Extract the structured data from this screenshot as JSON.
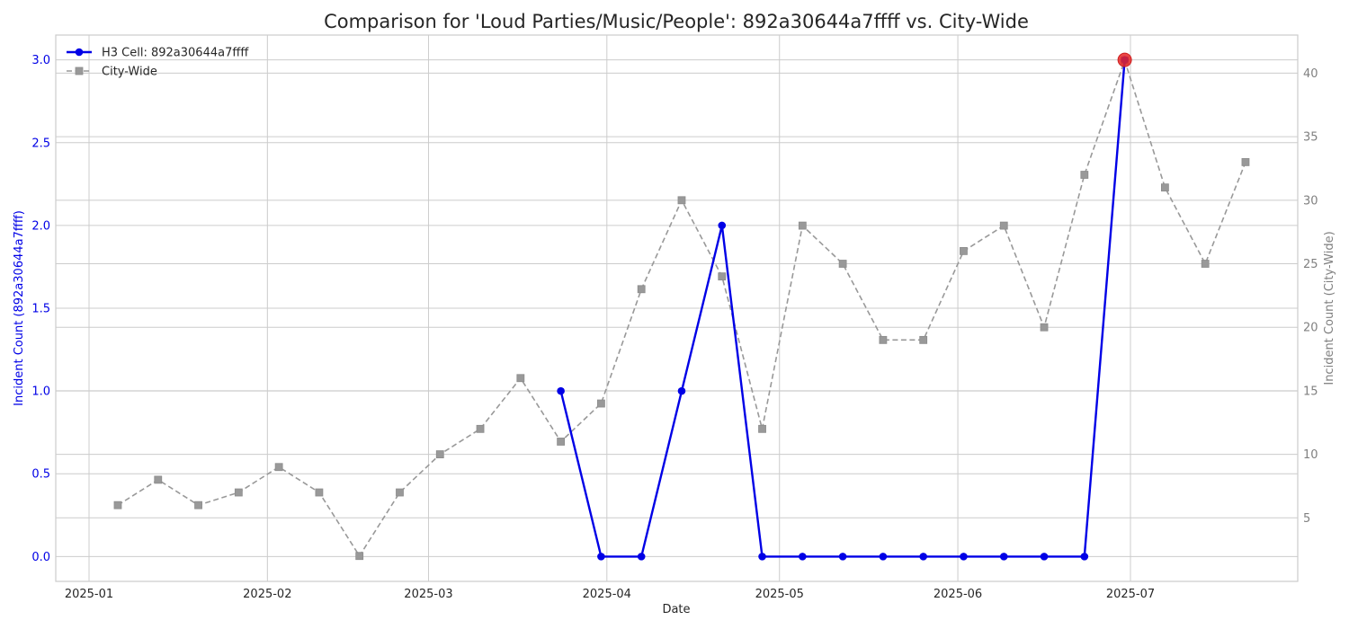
{
  "chart_data": {
    "type": "line",
    "title": "Comparison for 'Loud Parties/Music/People': 892a30644a7ffff vs. City-Wide",
    "xlabel": "Date",
    "ylabel_left": "Incident Count (892a30644a7ffff)",
    "ylabel_right": "Incident Count (City-Wide)",
    "x_ticks": [
      "2025-01",
      "2025-02",
      "2025-03",
      "2025-04",
      "2025-05",
      "2025-06",
      "2025-07"
    ],
    "ylim_left": [
      -0.15,
      3.15
    ],
    "ylim_right": [
      0,
      43
    ],
    "y_ticks_left": [
      "0.0",
      "0.5",
      "1.0",
      "1.5",
      "2.0",
      "2.5",
      "3.0"
    ],
    "y_ticks_right": [
      "5",
      "10",
      "15",
      "20",
      "25",
      "30",
      "35",
      "40"
    ],
    "grid": true,
    "legend_position": "top-left",
    "series": [
      {
        "name": "H3 Cell: 892a30644a7ffff",
        "axis": "left",
        "color": "#0000e6",
        "style": "solid",
        "marker": "circle",
        "points": [
          [
            "2025-03-24",
            1
          ],
          [
            "2025-03-31",
            0
          ],
          [
            "2025-04-07",
            0
          ],
          [
            "2025-04-14",
            1
          ],
          [
            "2025-04-21",
            2
          ],
          [
            "2025-04-28",
            0
          ],
          [
            "2025-05-05",
            0
          ],
          [
            "2025-05-12",
            0
          ],
          [
            "2025-05-19",
            0
          ],
          [
            "2025-05-26",
            0
          ],
          [
            "2025-06-02",
            0
          ],
          [
            "2025-06-09",
            0
          ],
          [
            "2025-06-16",
            0
          ],
          [
            "2025-06-23",
            0
          ],
          [
            "2025-06-30",
            3
          ]
        ]
      },
      {
        "name": "City-Wide",
        "axis": "right",
        "color": "#999999",
        "style": "dashed",
        "marker": "square",
        "points": [
          [
            "2025-01-06",
            6
          ],
          [
            "2025-01-13",
            8
          ],
          [
            "2025-01-20",
            6
          ],
          [
            "2025-01-27",
            7
          ],
          [
            "2025-02-03",
            9
          ],
          [
            "2025-02-10",
            7
          ],
          [
            "2025-02-17",
            2
          ],
          [
            "2025-02-24",
            7
          ],
          [
            "2025-03-03",
            10
          ],
          [
            "2025-03-10",
            12
          ],
          [
            "2025-03-17",
            16
          ],
          [
            "2025-03-24",
            11
          ],
          [
            "2025-03-31",
            14
          ],
          [
            "2025-04-07",
            23
          ],
          [
            "2025-04-14",
            30
          ],
          [
            "2025-04-21",
            24
          ],
          [
            "2025-04-28",
            12
          ],
          [
            "2025-05-05",
            28
          ],
          [
            "2025-05-12",
            25
          ],
          [
            "2025-05-19",
            19
          ],
          [
            "2025-05-26",
            19
          ],
          [
            "2025-06-02",
            26
          ],
          [
            "2025-06-09",
            28
          ],
          [
            "2025-06-16",
            20
          ],
          [
            "2025-06-23",
            32
          ],
          [
            "2025-06-30",
            41
          ],
          [
            "2025-07-07",
            31
          ],
          [
            "2025-07-14",
            25
          ],
          [
            "2025-07-21",
            33
          ]
        ]
      }
    ],
    "highlight": {
      "date": "2025-06-30",
      "value": 3,
      "axis": "left",
      "color": "#e62626"
    },
    "colors": {
      "left_axis": "#0000e6",
      "right_axis": "#808080",
      "grid": "#cccccc",
      "frame": "#cccccc"
    }
  }
}
